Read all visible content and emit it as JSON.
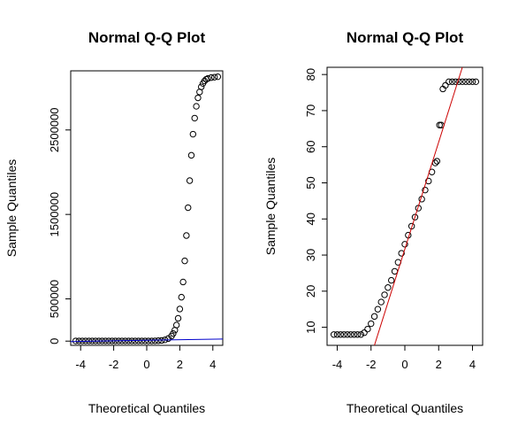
{
  "chart_data": [
    {
      "type": "scatter",
      "title": "Normal Q-Q Plot",
      "xlabel": "Theoretical Quantiles",
      "ylabel": "Sample Quantiles",
      "xlim": [
        -4.6,
        4.6
      ],
      "ylim": [
        -50000,
        3200000
      ],
      "xticks": [
        -4,
        -2,
        0,
        2,
        4
      ],
      "xtick_labels": [
        "-4",
        "-2",
        "0",
        "2",
        "4"
      ],
      "yticks": [
        0,
        500000,
        1500000,
        2500000
      ],
      "ytick_labels": [
        "0",
        "500000",
        "1500000",
        "2500000"
      ],
      "grid": false,
      "line_color": "#0000cc",
      "qq_line": {
        "x": [
          -4.6,
          4.6
        ],
        "y": [
          -5000,
          25000
        ]
      },
      "points": {
        "x": [
          -4.3,
          -4.1,
          -3.9,
          -3.7,
          -3.5,
          -3.3,
          -3.1,
          -2.9,
          -2.7,
          -2.5,
          -2.3,
          -2.1,
          -1.9,
          -1.7,
          -1.5,
          -1.3,
          -1.1,
          -0.9,
          -0.7,
          -0.5,
          -0.3,
          -0.1,
          0.1,
          0.3,
          0.5,
          0.7,
          0.9,
          1.1,
          1.3,
          1.5,
          1.6,
          1.7,
          1.8,
          1.9,
          2.0,
          2.1,
          2.2,
          2.3,
          2.4,
          2.5,
          2.6,
          2.7,
          2.8,
          2.9,
          3.0,
          3.1,
          3.2,
          3.3,
          3.4,
          3.5,
          3.6,
          3.7,
          3.9,
          4.1,
          4.3
        ],
        "y": [
          2000,
          2000,
          2000,
          2000,
          2000,
          2000,
          2000,
          2000,
          2000,
          2000,
          2000,
          2000,
          2000,
          2000,
          2000,
          2000,
          2000,
          2000,
          2000,
          2000,
          2000,
          2000,
          2000,
          2000,
          3000,
          5000,
          8000,
          15000,
          30000,
          60000,
          90000,
          130000,
          190000,
          270000,
          380000,
          520000,
          700000,
          950000,
          1250000,
          1580000,
          1900000,
          2200000,
          2450000,
          2640000,
          2780000,
          2880000,
          2950000,
          3010000,
          3050000,
          3080000,
          3100000,
          3110000,
          3120000,
          3125000,
          3130000
        ]
      }
    },
    {
      "type": "scatter",
      "title": "Normal Q-Q Plot",
      "xlabel": "Theoretical Quantiles",
      "ylabel": "Sample Quantiles",
      "xlim": [
        -4.6,
        4.6
      ],
      "ylim": [
        5,
        82
      ],
      "xticks": [
        -4,
        -2,
        0,
        2,
        4
      ],
      "xtick_labels": [
        "-4",
        "-2",
        "0",
        "2",
        "4"
      ],
      "yticks": [
        10,
        20,
        30,
        40,
        50,
        60,
        70,
        80
      ],
      "ytick_labels": [
        "10",
        "20",
        "30",
        "40",
        "50",
        "60",
        "70",
        "80"
      ],
      "grid": false,
      "line_color": "#cc0000",
      "qq_line": {
        "x": [
          -1.8,
          3.4
        ],
        "y": [
          5,
          82
        ]
      },
      "points": {
        "x": [
          -4.2,
          -4.0,
          -3.8,
          -3.6,
          -3.4,
          -3.2,
          -3.0,
          -2.8,
          -2.6,
          -2.4,
          -2.2,
          -2.0,
          -1.8,
          -1.6,
          -1.4,
          -1.2,
          -1.0,
          -0.8,
          -0.6,
          -0.4,
          -0.2,
          0.0,
          0.2,
          0.4,
          0.6,
          0.8,
          1.0,
          1.2,
          1.4,
          1.6,
          1.8,
          1.9,
          2.05,
          2.15,
          2.25,
          2.4,
          2.6,
          2.8,
          3.0,
          3.2,
          3.4,
          3.6,
          3.8,
          4.0,
          4.2
        ],
        "y": [
          8,
          8,
          8,
          8,
          8,
          8,
          8,
          8,
          8,
          8.5,
          9.5,
          11,
          13,
          15,
          17,
          19,
          21,
          23,
          25.5,
          28,
          30.5,
          33,
          35.5,
          38,
          40.5,
          43,
          45.5,
          48,
          50.5,
          53,
          55.5,
          56,
          66,
          66,
          76,
          77,
          78,
          78,
          78,
          78,
          78,
          78,
          78,
          78,
          78
        ]
      }
    }
  ]
}
